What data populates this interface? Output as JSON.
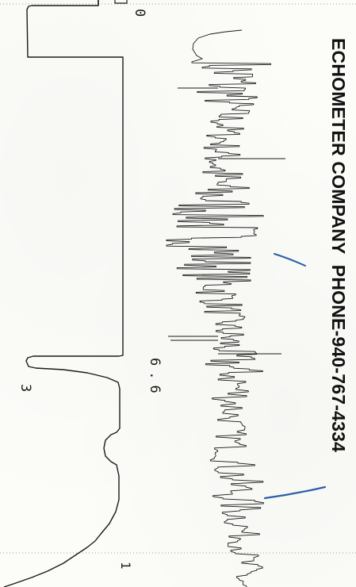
{
  "header": {
    "company": "ECHOMETER COMPANY",
    "phone": "PHONE-940-767-4334"
  },
  "markers": {
    "zero": "0",
    "mid": "6.6",
    "lower": "3",
    "one": "1"
  },
  "colors": {
    "trace": "#1a1a1a",
    "pen": "#2a5fa8",
    "paper": "#fcfcf9"
  },
  "chart_data": {
    "type": "line",
    "series": [
      {
        "name": "",
        "description_values": "acoustic trace amplitude along time axis (upper/right trace)"
      },
      {
        "name": "",
        "description_values": "marker trace square pulses (left trace)"
      }
    ]
  }
}
